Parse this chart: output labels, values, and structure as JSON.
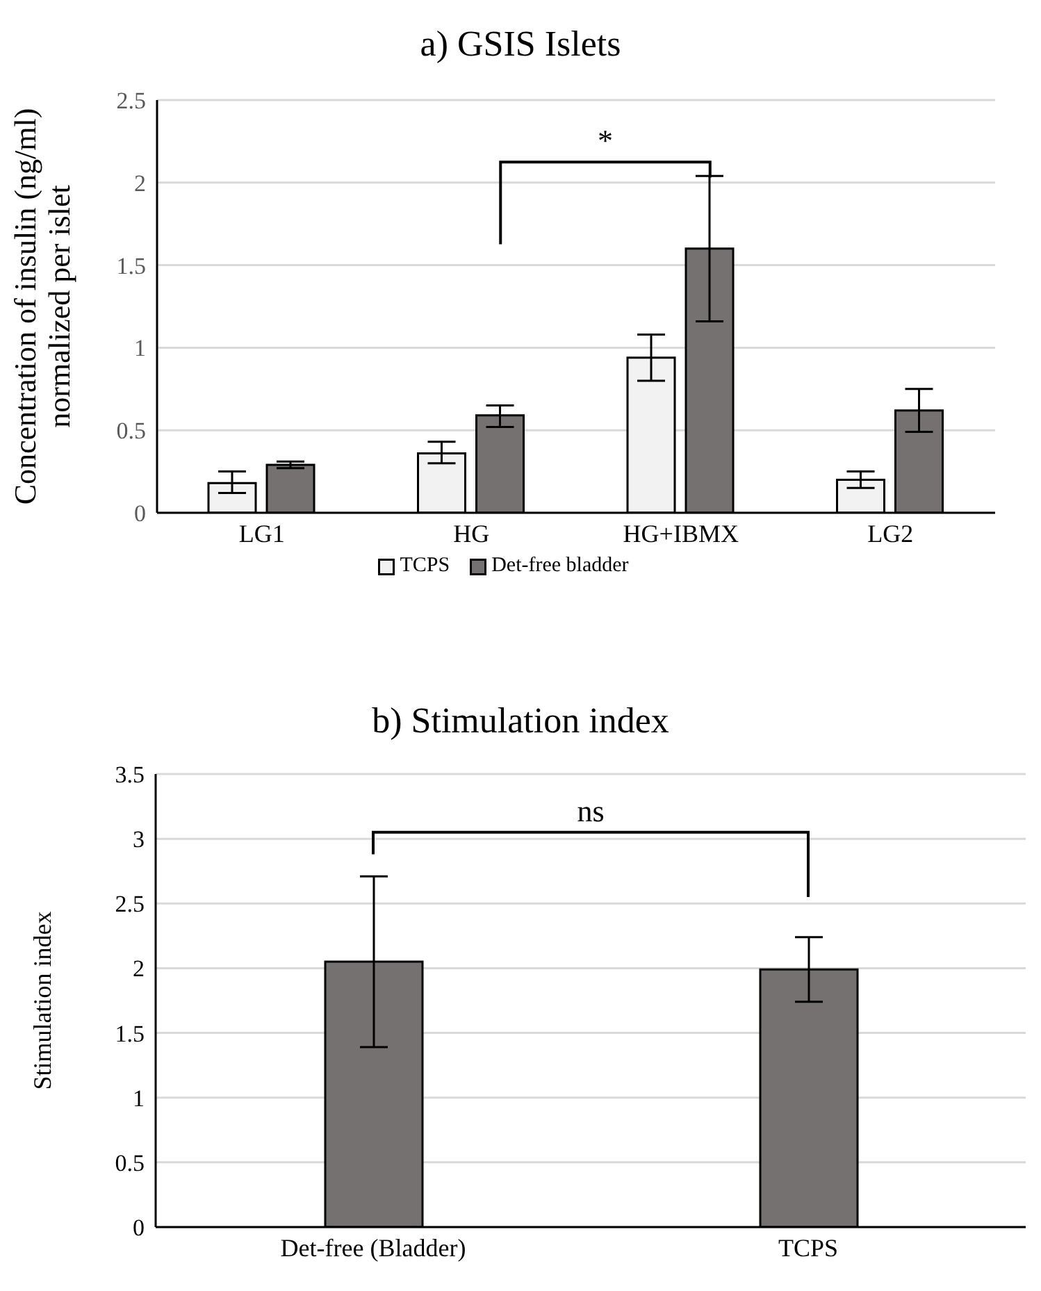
{
  "chart_data": [
    {
      "type": "bar",
      "title": "a) GSIS Islets",
      "ylabel": "Concentration of insulin (ng/ml)\nnormalized per islet",
      "categories": [
        "LG1",
        "HG",
        "HG+IBMX",
        "LG2"
      ],
      "series": [
        {
          "name": "TCPS",
          "color": "#f2f2f2",
          "values": [
            0.18,
            0.36,
            0.94,
            0.2
          ],
          "errors": [
            [
              0.12,
              0.25
            ],
            [
              0.3,
              0.43
            ],
            [
              0.8,
              1.08
            ],
            [
              0.15,
              0.25
            ]
          ]
        },
        {
          "name": "Det-free bladder",
          "color": "#767171",
          "values": [
            0.29,
            0.59,
            1.6,
            0.62
          ],
          "errors": [
            [
              0.27,
              0.31
            ],
            [
              0.52,
              0.65
            ],
            [
              1.16,
              2.04
            ],
            [
              0.49,
              0.75
            ]
          ]
        }
      ],
      "ylim": [
        0,
        2.5
      ],
      "yticks": [
        0,
        0.5,
        1,
        1.5,
        2,
        2.5
      ],
      "grid": "y",
      "legend": "bottom",
      "annotations": [
        "*"
      ]
    },
    {
      "type": "bar",
      "title": "b) Stimulation index",
      "ylabel": "Stimulation index",
      "categories": [
        "Det-free (Bladder)",
        "TCPS"
      ],
      "series": [
        {
          "color": "#767171",
          "values": [
            2.05,
            1.99
          ],
          "errors": [
            [
              1.39,
              2.71
            ],
            [
              1.74,
              2.24
            ]
          ]
        }
      ],
      "ylim": [
        0,
        3.5
      ],
      "yticks": [
        0,
        0.5,
        1,
        1.5,
        2,
        2.5,
        3,
        3.5
      ],
      "grid": "y",
      "annotations": [
        "ns"
      ]
    }
  ]
}
